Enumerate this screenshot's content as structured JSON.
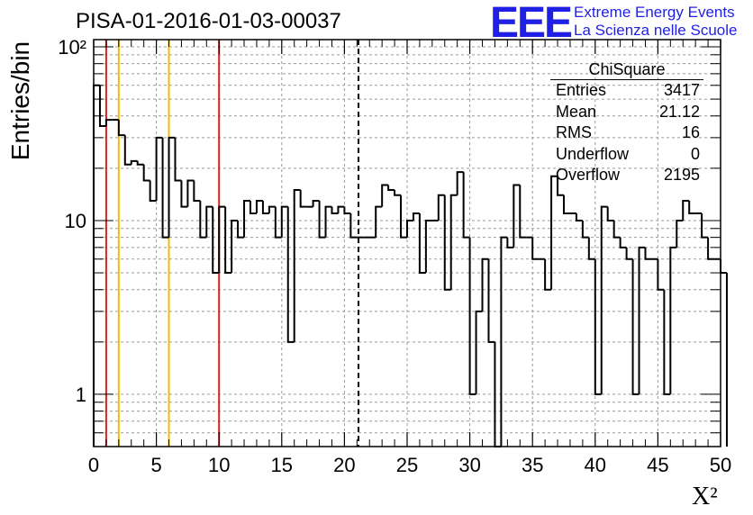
{
  "title": "PISA-01-2016-01-03-00037",
  "logo": {
    "mark": "EEE",
    "line1": "Extreme Energy Events",
    "line2": "La Scienza nelle Scuole",
    "color": "#1f1fe6"
  },
  "stats": {
    "name": "ChiSquare",
    "rows": [
      {
        "key": "Entries",
        "value": "3417"
      },
      {
        "key": "Mean",
        "value": "21.12"
      },
      {
        "key": "RMS",
        "value": "16"
      },
      {
        "key": "Underflow",
        "value": "0"
      },
      {
        "key": "Overflow",
        "value": "2195"
      }
    ]
  },
  "chart_data": {
    "type": "histogram",
    "title": "PISA-01-2016-01-03-00037",
    "xlabel": "X²",
    "ylabel": "Entries/bin",
    "xlim": [
      0,
      50
    ],
    "ylim": [
      0.5,
      110
    ],
    "y_scale": "log",
    "grid": true,
    "x_ticks": [
      0,
      5,
      10,
      15,
      20,
      25,
      30,
      35,
      40,
      45,
      50
    ],
    "x_tick_labels": [
      "0",
      "5",
      "10",
      "15",
      "20",
      "25",
      "30",
      "35",
      "40",
      "45",
      "50"
    ],
    "y_ticks": [
      1,
      10,
      100
    ],
    "y_tick_labels": [
      "1",
      "10",
      "10²"
    ],
    "bin_width": 0.5,
    "bin_start": 0,
    "values": [
      60,
      35,
      38,
      38,
      31,
      21,
      22,
      21,
      17,
      13,
      30,
      8,
      30,
      17,
      12,
      17,
      13,
      8,
      12,
      5,
      12,
      5,
      10,
      8,
      13,
      11,
      13,
      11,
      12,
      8,
      12,
      2,
      15,
      12,
      12,
      13,
      8,
      12,
      11,
      12,
      11,
      8,
      8,
      8,
      8,
      12,
      16,
      15,
      14,
      8,
      10,
      11,
      5,
      10,
      10,
      14,
      4,
      14,
      19,
      8,
      1,
      3,
      6,
      2,
      0.5,
      8,
      7,
      16,
      8,
      8,
      6,
      6,
      4,
      18,
      14,
      11,
      11,
      10,
      8,
      6,
      1,
      12,
      10,
      8,
      7,
      6,
      1,
      7,
      6,
      6,
      4,
      1,
      7,
      10,
      13,
      11,
      11,
      8,
      6,
      6,
      5
    ],
    "vertical_lines": [
      {
        "x": 1,
        "color": "#e02020",
        "style": "solid"
      },
      {
        "x": 2,
        "color": "#f0c000",
        "style": "solid"
      },
      {
        "x": 6,
        "color": "#f0c000",
        "style": "solid"
      },
      {
        "x": 10,
        "color": "#e02020",
        "style": "solid"
      },
      {
        "x": 21.12,
        "color": "#000000",
        "style": "dashed"
      }
    ]
  }
}
